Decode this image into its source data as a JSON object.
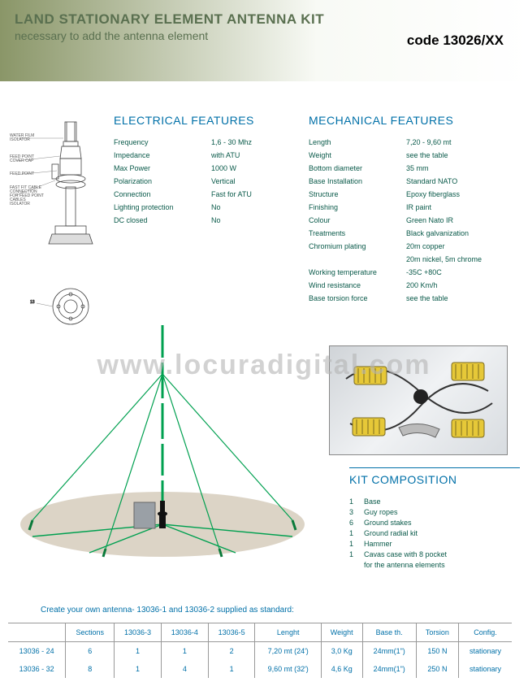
{
  "header": {
    "title": "LAND STATIONARY ELEMENT ANTENNA KIT",
    "subtitle": "necessary to add the antenna element",
    "code": "code 13026/XX"
  },
  "watermark": "www.locuradigital.com",
  "electrical": {
    "title": "ELECTRICAL FEATURES",
    "rows": [
      {
        "label": "Frequency",
        "value": "1,6 - 30  Mhz"
      },
      {
        "label": "Impedance",
        "value": "with ATU"
      },
      {
        "label": "Max Power",
        "value": "1000 W"
      },
      {
        "label": "Polarization",
        "value": "Vertical"
      },
      {
        "label": "Connection",
        "value": "Fast for ATU"
      },
      {
        "label": "Lighting protection",
        "value": "No"
      },
      {
        "label": "DC closed",
        "value": "No"
      }
    ]
  },
  "mechanical": {
    "title": "MECHANICAL FEATURES",
    "rows": [
      {
        "label": "Length",
        "value": "7,20 - 9,60 mt"
      },
      {
        "label": "Weight",
        "value": "see the table"
      },
      {
        "label": "Bottom diameter",
        "value": "35 mm"
      },
      {
        "label": "Base Installation",
        "value": "Standard NATO"
      },
      {
        "label": "Structure",
        "value": "Epoxy fiberglass"
      },
      {
        "label": "Finishing",
        "value": "IR paint"
      },
      {
        "label": "Colour",
        "value": "Green Nato IR"
      },
      {
        "label": "Treatments",
        "value": "Black galvanization"
      },
      {
        "label": "Chromium plating",
        "value": "20m copper"
      },
      {
        "label": "",
        "value": "20m nickel, 5m chrome"
      },
      {
        "label": "Working temperature",
        "value": "-35C +80C"
      },
      {
        "label": "Wind resistance",
        "value": "200 Km/h"
      },
      {
        "label": "Base torsion force",
        "value": "see the table"
      }
    ]
  },
  "diagram_labels": {
    "a": "WATER FILM ISOLATOR",
    "b": "FEED POINT COVER CAP",
    "c": "FEED POINT",
    "d": "FAST FIT CABLE CONNECTION FOR FEED POINT CABLES ISOLATOR",
    "e": "13"
  },
  "kit": {
    "title": "KIT COMPOSITION",
    "items": [
      {
        "qty": "1",
        "name": "Base"
      },
      {
        "qty": "3",
        "name": "Guy ropes"
      },
      {
        "qty": "6",
        "name": "Ground stakes"
      },
      {
        "qty": "1",
        "name": "Ground radial kit"
      },
      {
        "qty": "1",
        "name": "Hammer"
      },
      {
        "qty": "1",
        "name": "Cavas case with 8 pocket"
      },
      {
        "qty": "",
        "name": "for the antenna elements"
      }
    ]
  },
  "table": {
    "caption": "Create your own antenna- 13036-1 and 13036-2 supplied as standard:",
    "headers": [
      "",
      "Sections",
      "13036-3",
      "13036-4",
      "13036-5",
      "Lenght",
      "Weight",
      "Base th.",
      "Torsion",
      "Config."
    ],
    "rows": [
      [
        "13036 - 24",
        "6",
        "1",
        "1",
        "2",
        "7,20 mt (24')",
        "3,0 Kg",
        "24mm(1\")",
        "150 N",
        "stationary"
      ],
      [
        "13036 - 32",
        "8",
        "1",
        "4",
        "1",
        "9,60 mt (32')",
        "4,6 Kg",
        "24mm(1\")",
        "250 N",
        "stationary"
      ]
    ]
  },
  "colors": {
    "title_blue": "#0070a8",
    "body_teal": "#0a5a4a",
    "antenna_green": "#00a050",
    "ground_beige": "#d8cfc0",
    "header_olive": "#8a9668"
  }
}
